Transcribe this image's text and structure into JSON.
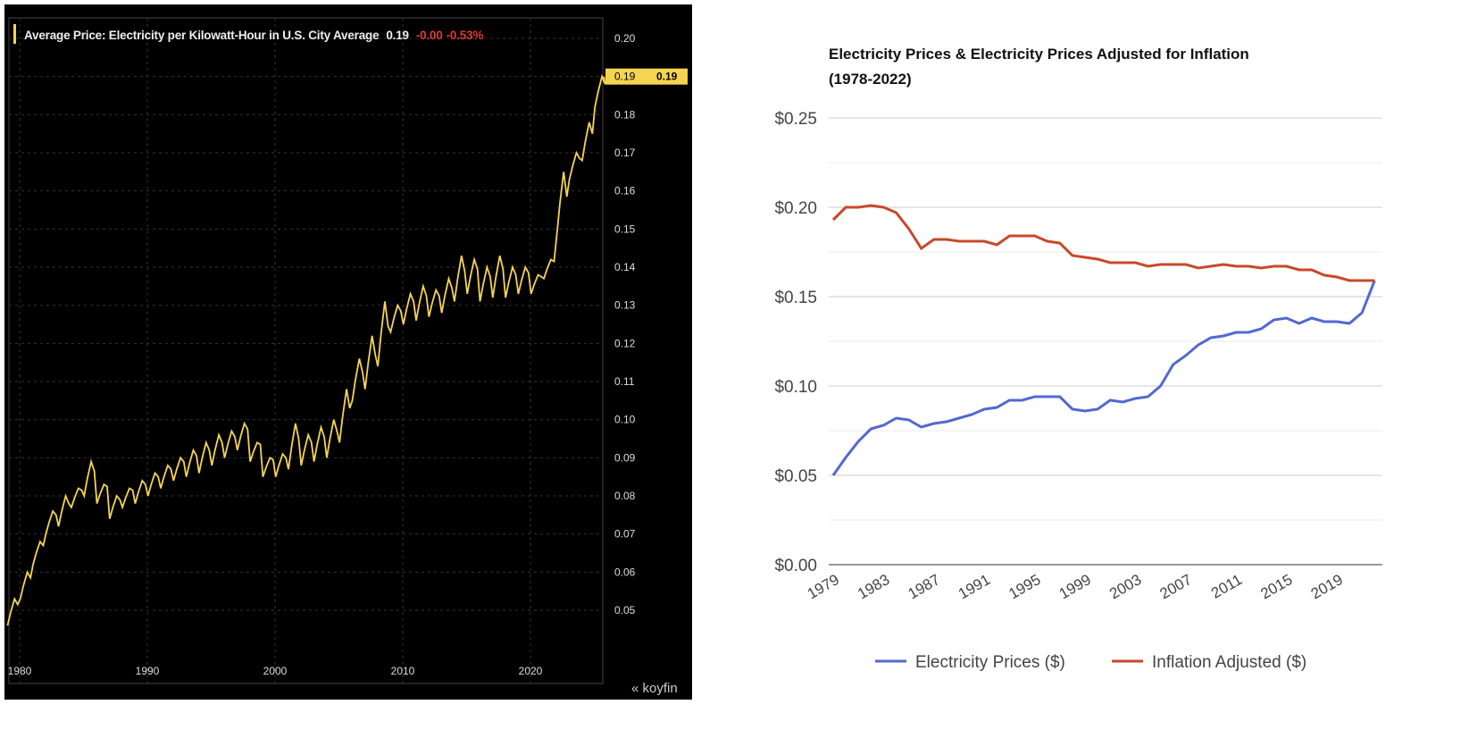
{
  "chart_data": [
    {
      "type": "line",
      "title": "Average Price: Electricity per Kilowatt-Hour in U.S. City Average",
      "last_value": "0.19",
      "change": "-0.00",
      "change_pct": "-0.53%",
      "current_badge": "0.19",
      "brand": "koyfin",
      "line_color": "#f5d451",
      "change_color": "#e03a2f",
      "yticks": [
        "0.05",
        "0.06",
        "0.07",
        "0.08",
        "0.09",
        "0.10",
        "0.11",
        "0.12",
        "0.13",
        "0.14",
        "0.15",
        "0.16",
        "0.17",
        "0.18",
        "0.19",
        "0.20"
      ],
      "xticks": [
        "1980",
        "1990",
        "2000",
        "2010",
        "2020"
      ],
      "xlim": [
        1978.9,
        2025.8
      ],
      "ylim": [
        0.045,
        0.203
      ],
      "series_semiannual_low_high": {
        "start_year": 1979,
        "values": [
          [
            0.046,
            0.053
          ],
          [
            0.053,
            0.06
          ],
          [
            0.062,
            0.068
          ],
          [
            0.07,
            0.076
          ],
          [
            0.072,
            0.08
          ],
          [
            0.077,
            0.082
          ],
          [
            0.08,
            0.089
          ],
          [
            0.078,
            0.083
          ],
          [
            0.074,
            0.08
          ],
          [
            0.077,
            0.082
          ],
          [
            0.078,
            0.084
          ],
          [
            0.08,
            0.086
          ],
          [
            0.082,
            0.088
          ],
          [
            0.084,
            0.09
          ],
          [
            0.085,
            0.092
          ],
          [
            0.086,
            0.094
          ],
          [
            0.088,
            0.096
          ],
          [
            0.09,
            0.097
          ],
          [
            0.092,
            0.099
          ],
          [
            0.089,
            0.094
          ],
          [
            0.085,
            0.09
          ],
          [
            0.085,
            0.091
          ],
          [
            0.087,
            0.099
          ],
          [
            0.088,
            0.096
          ],
          [
            0.089,
            0.098
          ],
          [
            0.09,
            0.1
          ],
          [
            0.094,
            0.108
          ],
          [
            0.105,
            0.116
          ],
          [
            0.108,
            0.122
          ],
          [
            0.114,
            0.131
          ],
          [
            0.123,
            0.13
          ],
          [
            0.125,
            0.133
          ],
          [
            0.126,
            0.135
          ],
          [
            0.127,
            0.134
          ],
          [
            0.128,
            0.137
          ],
          [
            0.131,
            0.143
          ],
          [
            0.133,
            0.142
          ],
          [
            0.131,
            0.14
          ],
          [
            0.132,
            0.143
          ],
          [
            0.132,
            0.14
          ],
          [
            0.133,
            0.14
          ],
          [
            0.133,
            0.138
          ],
          [
            0.137,
            0.142
          ],
          [
            0.148,
            0.165
          ],
          [
            0.163,
            0.17
          ],
          [
            0.168,
            0.178
          ],
          [
            0.182,
            0.19
          ]
        ]
      }
    },
    {
      "type": "line",
      "title": "Electricity Prices & Electricity Prices Adjusted for Inflation",
      "subtitle": "(1978-2022)",
      "x": [
        1979,
        1980,
        1981,
        1982,
        1983,
        1984,
        1985,
        1986,
        1987,
        1988,
        1989,
        1990,
        1991,
        1992,
        1993,
        1994,
        1995,
        1996,
        1997,
        1998,
        1999,
        2000,
        2001,
        2002,
        2003,
        2004,
        2005,
        2006,
        2007,
        2008,
        2009,
        2010,
        2011,
        2012,
        2013,
        2014,
        2015,
        2016,
        2017,
        2018,
        2019,
        2020,
        2021,
        2022
      ],
      "xticks": [
        "1979",
        "1983",
        "1987",
        "1991",
        "1995",
        "1999",
        "2003",
        "2007",
        "2011",
        "2015",
        "2019"
      ],
      "yticks": [
        "$0.00",
        "$0.05",
        "$0.10",
        "$0.15",
        "$0.20",
        "$0.25"
      ],
      "ylim": [
        0,
        0.25
      ],
      "grid": true,
      "legend": "bottom",
      "series": [
        {
          "name": "Electricity Prices ($)",
          "color": "#5468d0",
          "values": [
            0.05,
            0.06,
            0.069,
            0.076,
            0.078,
            0.082,
            0.081,
            0.077,
            0.079,
            0.08,
            0.082,
            0.084,
            0.087,
            0.088,
            0.092,
            0.092,
            0.094,
            0.094,
            0.094,
            0.087,
            0.086,
            0.087,
            0.092,
            0.091,
            0.093,
            0.094,
            0.1,
            0.112,
            0.117,
            0.123,
            0.127,
            0.128,
            0.13,
            0.13,
            0.132,
            0.137,
            0.138,
            0.135,
            0.138,
            0.136,
            0.136,
            0.135,
            0.141,
            0.159
          ]
        },
        {
          "name": "Inflation Adjusted ($)",
          "color": "#c8492b",
          "values": [
            0.193,
            0.2,
            0.2,
            0.201,
            0.2,
            0.197,
            0.188,
            0.177,
            0.182,
            0.182,
            0.181,
            0.181,
            0.181,
            0.179,
            0.184,
            0.184,
            0.184,
            0.181,
            0.18,
            0.173,
            0.172,
            0.171,
            0.169,
            0.169,
            0.169,
            0.167,
            0.168,
            0.168,
            0.168,
            0.166,
            0.167,
            0.168,
            0.167,
            0.167,
            0.166,
            0.167,
            0.167,
            0.165,
            0.165,
            0.162,
            0.161,
            0.159,
            0.159,
            0.159
          ]
        }
      ]
    }
  ]
}
